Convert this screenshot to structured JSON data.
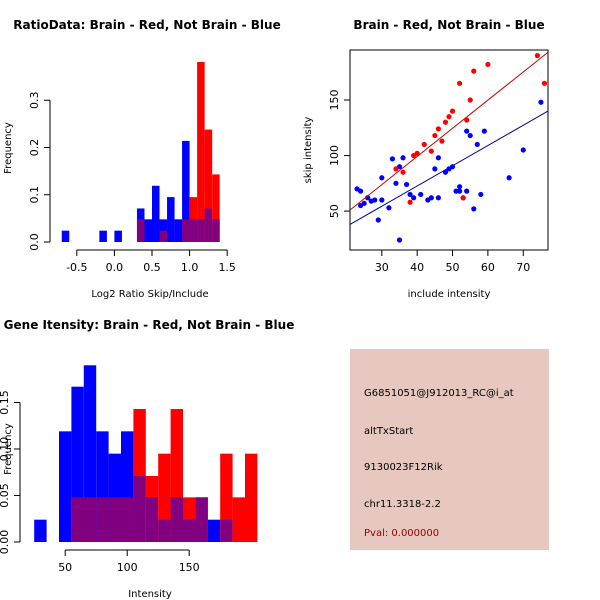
{
  "colors": {
    "red": "#ff0000",
    "blue": "#0000ff",
    "overlap": "#800080",
    "red_line": "#cc0000",
    "blue_line": "#000099",
    "info_bg": "#e6c8c0",
    "pval": "#990000"
  },
  "chart_data": [
    {
      "type": "bar",
      "title": "RatioData: Brain - Red, Not Brain - Blue",
      "xlabel": "Log2 Ratio Skip/Include",
      "ylabel": "Frequency",
      "xlim": [
        -0.75,
        1.75
      ],
      "ylim": [
        0,
        0.4
      ],
      "bin_start": -0.7,
      "bin_width": 0.1,
      "xticks": [
        -0.5,
        0.0,
        0.5,
        1.0,
        1.5
      ],
      "xtick_labels": [
        "-0.5",
        "0.0",
        "0.5",
        "1.0",
        "1.5"
      ],
      "yticks": [
        0.0,
        0.1,
        0.2,
        0.3
      ],
      "ytick_labels": [
        "0.0",
        "0.1",
        "0.2",
        "0.3"
      ],
      "series": [
        {
          "name": "Not Brain",
          "color": "blue",
          "values": [
            0.024,
            0,
            0,
            0,
            0,
            0.024,
            0,
            0.024,
            0,
            0,
            0.071,
            0.048,
            0.119,
            0.048,
            0.095,
            0.048,
            0.214,
            0.048,
            0.048,
            0.071,
            0.048
          ]
        },
        {
          "name": "Brain",
          "color": "red",
          "values": [
            0,
            0,
            0,
            0,
            0,
            0,
            0,
            0,
            0,
            0,
            0.048,
            0,
            0,
            0.024,
            0,
            0,
            0.048,
            0.095,
            0.381,
            0.238,
            0.143
          ]
        }
      ]
    },
    {
      "type": "scatter",
      "title": "Brain - Red, Not Brain - Blue",
      "xlabel": "include intensity",
      "ylabel": "skip intensity",
      "xlim": [
        21,
        77
      ],
      "ylim": [
        15,
        195
      ],
      "xticks": [
        30,
        40,
        50,
        60,
        70
      ],
      "xtick_labels": [
        "30",
        "40",
        "50",
        "60",
        "70"
      ],
      "yticks": [
        50,
        100,
        150
      ],
      "ytick_labels": [
        "50",
        "100",
        "150"
      ],
      "series": [
        {
          "name": "Not Brain",
          "color": "blue",
          "points": [
            [
              23,
              70
            ],
            [
              24,
              68
            ],
            [
              24,
              55
            ],
            [
              25,
              57
            ],
            [
              26,
              62
            ],
            [
              27,
              59
            ],
            [
              28,
              60
            ],
            [
              29,
              42
            ],
            [
              30,
              80
            ],
            [
              30,
              60
            ],
            [
              32,
              53
            ],
            [
              33,
              97
            ],
            [
              34,
              75
            ],
            [
              35,
              90
            ],
            [
              35,
              24
            ],
            [
              36,
              98
            ],
            [
              37,
              74
            ],
            [
              38,
              65
            ],
            [
              39,
              62
            ],
            [
              41,
              65
            ],
            [
              43,
              60
            ],
            [
              44,
              62
            ],
            [
              45,
              88
            ],
            [
              46,
              98
            ],
            [
              46,
              62
            ],
            [
              48,
              85
            ],
            [
              49,
              88
            ],
            [
              50,
              90
            ],
            [
              51,
              68
            ],
            [
              52,
              72
            ],
            [
              52,
              68
            ],
            [
              53,
              62
            ],
            [
              54,
              68
            ],
            [
              54,
              122
            ],
            [
              55,
              118
            ],
            [
              56,
              52
            ],
            [
              57,
              110
            ],
            [
              58,
              65
            ],
            [
              59,
              122
            ],
            [
              66,
              80
            ],
            [
              70,
              105
            ],
            [
              75,
              148
            ]
          ],
          "fit": [
            [
              21,
              38
            ],
            [
              77,
              140
            ]
          ]
        },
        {
          "name": "Brain",
          "color": "red",
          "points": [
            [
              34,
              88
            ],
            [
              36,
              85
            ],
            [
              38,
              58
            ],
            [
              39,
              100
            ],
            [
              40,
              102
            ],
            [
              42,
              110
            ],
            [
              44,
              104
            ],
            [
              45,
              118
            ],
            [
              46,
              124
            ],
            [
              47,
              113
            ],
            [
              48,
              130
            ],
            [
              49,
              135
            ],
            [
              50,
              140
            ],
            [
              52,
              165
            ],
            [
              53,
              62
            ],
            [
              54,
              132
            ],
            [
              55,
              150
            ],
            [
              56,
              176
            ],
            [
              60,
              182
            ],
            [
              74,
              190
            ],
            [
              76,
              165
            ]
          ],
          "fit": [
            [
              21,
              51
            ],
            [
              77,
              193
            ]
          ]
        }
      ]
    },
    {
      "type": "bar",
      "title": "Gene Itensity: Brain - Red, Not Brain - Blue",
      "xlabel": "Intensity",
      "ylabel": "Frequency",
      "xlim": [
        20,
        195
      ],
      "ylim": [
        0,
        0.2
      ],
      "bin_start": 25,
      "bin_width": 10,
      "xticks": [
        50,
        100,
        150
      ],
      "xtick_labels": [
        "50",
        "100",
        "150"
      ],
      "yticks": [
        0.0,
        0.05,
        0.1,
        0.15
      ],
      "ytick_labels": [
        "0.00",
        "0.05",
        "0.10",
        "0.15"
      ],
      "series": [
        {
          "name": "Not Brain",
          "color": "blue",
          "values": [
            0.024,
            0,
            0.119,
            0.167,
            0.19,
            0.119,
            0.095,
            0.119,
            0.071,
            0.048,
            0.024,
            0.048,
            0.024,
            0.048,
            0.024,
            0.024,
            0,
            0
          ]
        },
        {
          "name": "Brain",
          "color": "red",
          "values": [
            0,
            0,
            0,
            0.048,
            0.048,
            0.048,
            0.048,
            0.048,
            0.143,
            0.071,
            0.095,
            0.143,
            0.048,
            0.048,
            0,
            0.095,
            0.048,
            0.095
          ]
        }
      ]
    }
  ],
  "info": {
    "probe": "G6851051@J912013_RC@i_at",
    "event": "altTxStart",
    "gene": "9130023F12Rik",
    "location": "chr11.3318-2.2",
    "pval": "Pval: 0.000000"
  }
}
